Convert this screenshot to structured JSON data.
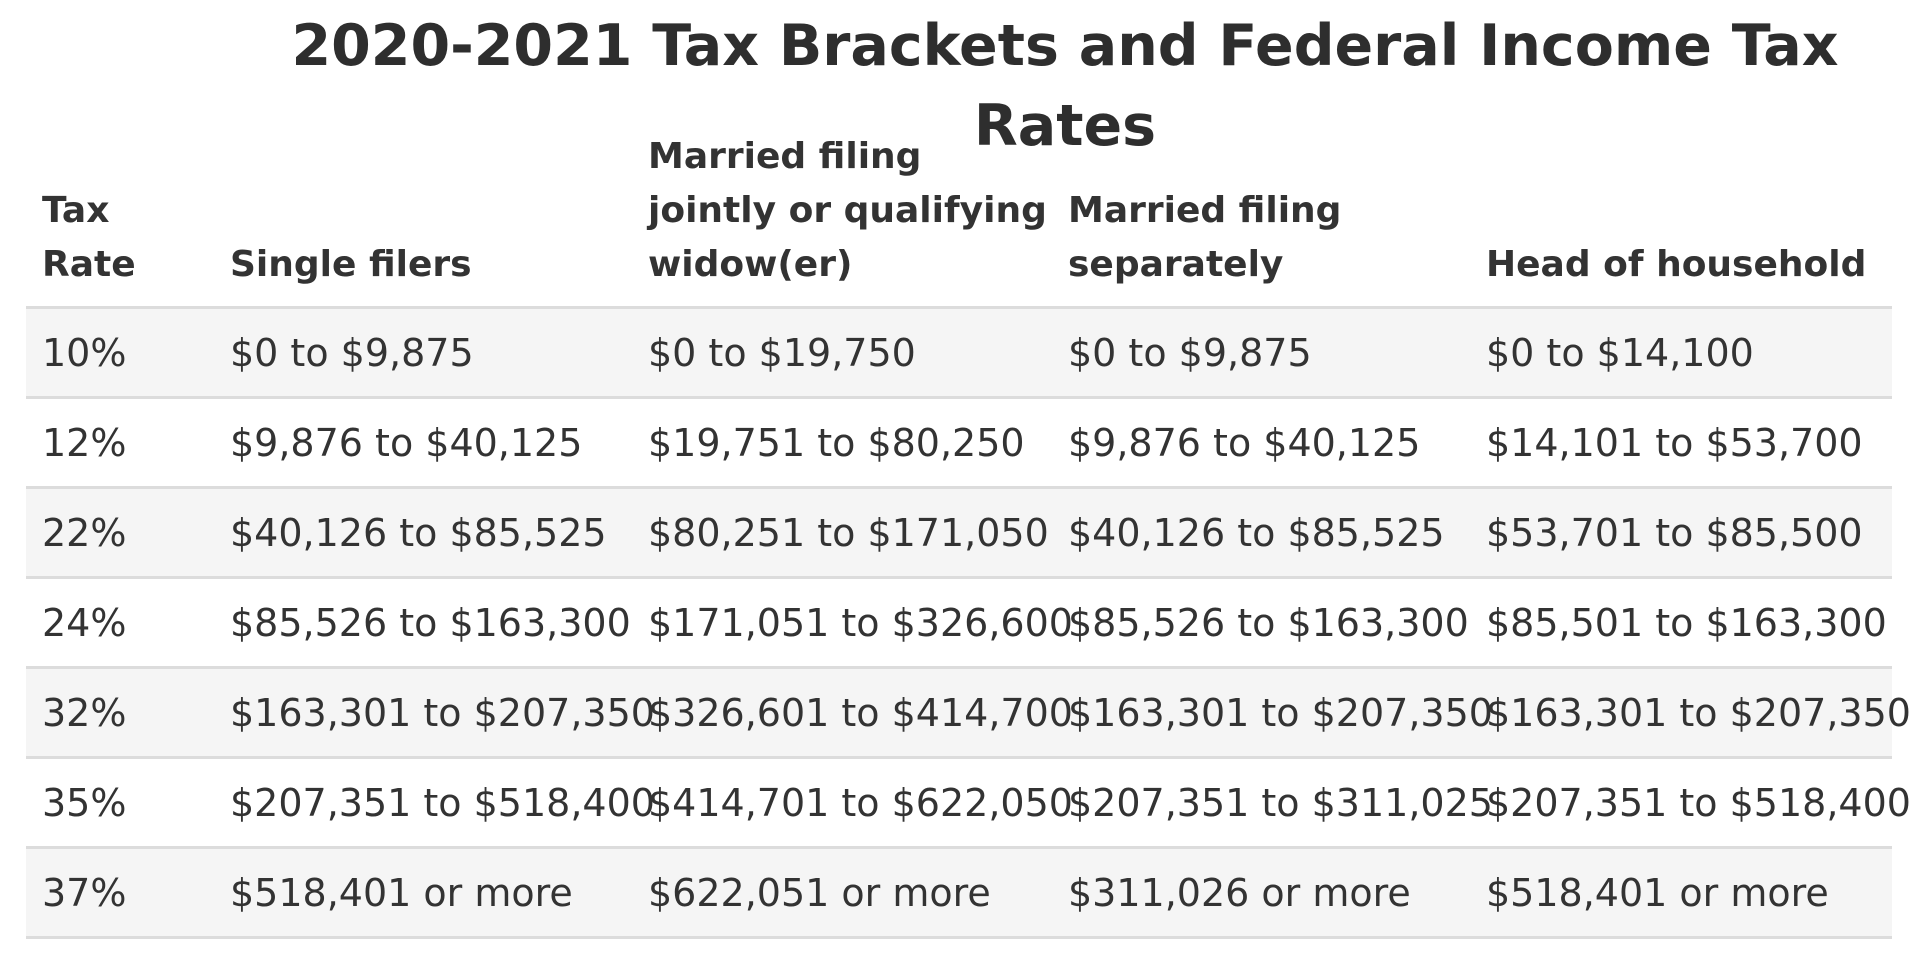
{
  "title": "2020-2021 Tax Brackets and Federal Income Tax Rates",
  "table": {
    "headers": [
      "Tax Rate",
      "Single filers",
      "Married filing jointly or qualifying widow(er)",
      "Married filing separately",
      "Head of household"
    ],
    "rows": [
      [
        "10%",
        "$0 to $9,875",
        "$0 to $19,750",
        "$0 to $9,875",
        "$0 to $14,100"
      ],
      [
        "12%",
        "$9,876 to $40,125",
        "$19,751 to $80,250",
        "$9,876 to $40,125",
        "$14,101 to $53,700"
      ],
      [
        "22%",
        "$40,126 to $85,525",
        "$80,251 to $171,050",
        "$40,126 to $85,525",
        "$53,701 to $85,500"
      ],
      [
        "24%",
        "$85,526 to $163,300",
        "$171,051 to $326,600",
        "$85,526 to $163,300",
        "$85,501 to $163,300"
      ],
      [
        "32%",
        "$163,301 to $207,350",
        "$326,601 to $414,700",
        "$163,301 to $207,350",
        "$163,301 to $207,350"
      ],
      [
        "35%",
        "$207,351 to $518,400",
        "$414,701 to $622,050",
        "$207,351 to $311,025",
        "$207,351 to $518,400"
      ],
      [
        "37%",
        "$518,401 or more",
        "$622,051 or more",
        "$311,026 or more",
        "$518,401 or more"
      ]
    ]
  }
}
